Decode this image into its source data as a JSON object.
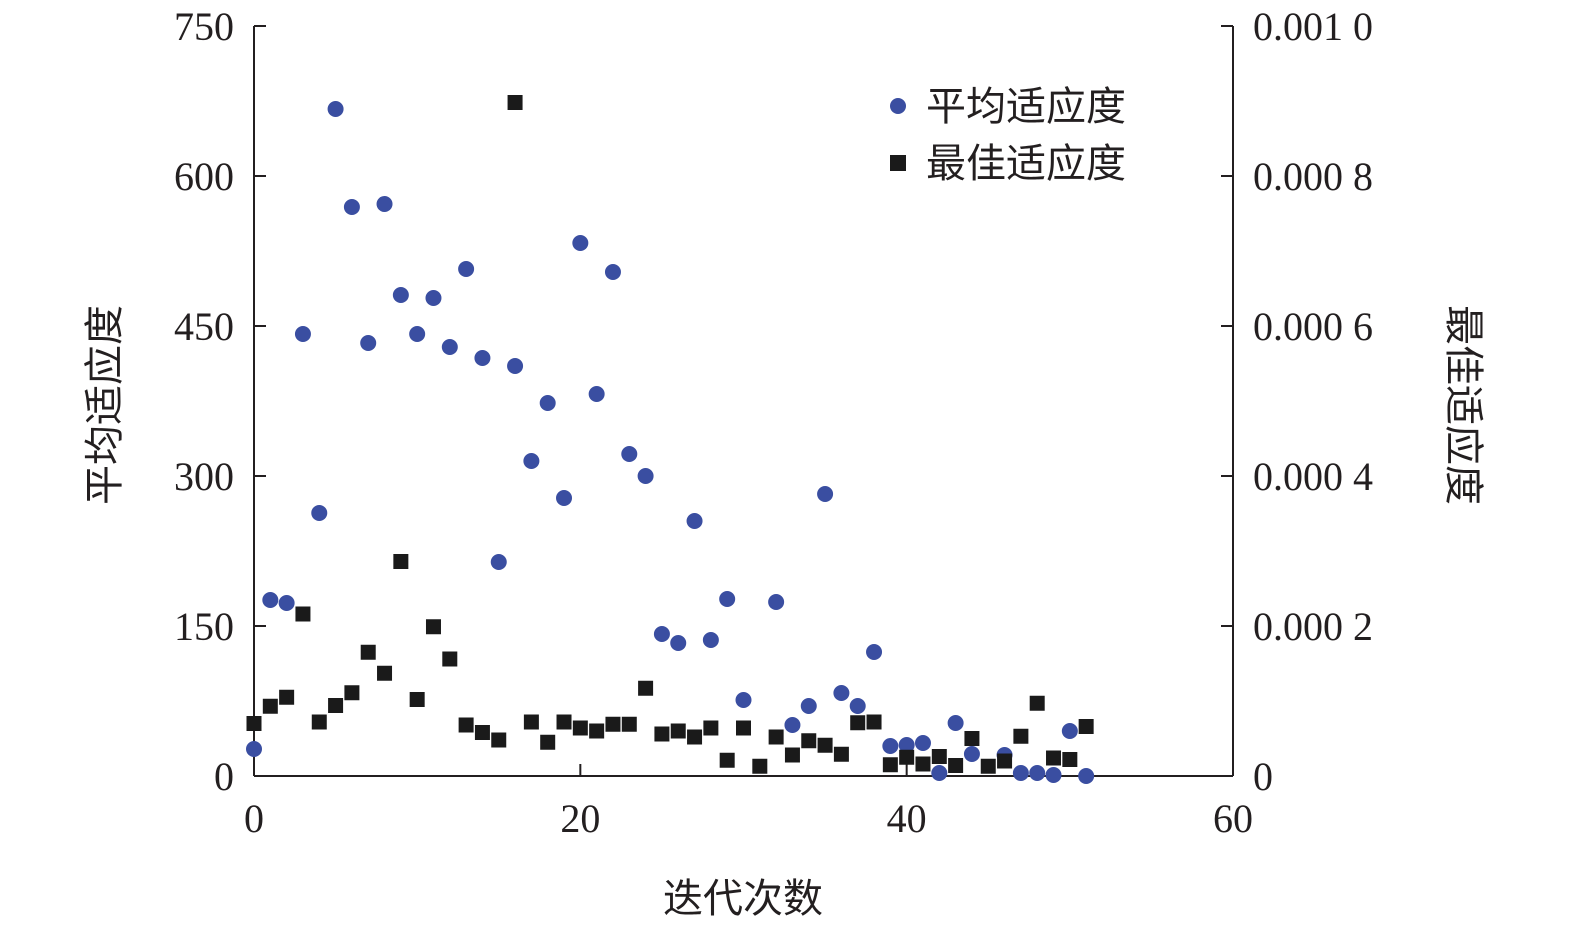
{
  "chart_data": {
    "type": "scatter",
    "title": "",
    "xlabel": "迭代次数",
    "ylabel_left": "平均适应度",
    "ylabel_right": "最佳适应度",
    "xlim": [
      0,
      60
    ],
    "ylim_left": [
      0,
      750
    ],
    "ylim_right": [
      0,
      0.001
    ],
    "x_ticks": [
      0,
      20,
      40,
      60
    ],
    "x_tick_labels": [
      "0",
      "20",
      "40",
      "60"
    ],
    "y_left_ticks": [
      0,
      150,
      300,
      450,
      600,
      750
    ],
    "y_left_tick_labels": [
      "0",
      "150",
      "300",
      "450",
      "600",
      "750"
    ],
    "y_right_ticks": [
      0,
      0.0002,
      0.0004,
      0.0006,
      0.0008,
      0.001
    ],
    "y_right_tick_labels": [
      "0",
      "0.000 2",
      "0.000 4",
      "0.000 6",
      "0.000 8",
      "0.001 0"
    ],
    "grid": false,
    "legend_position": "top-right",
    "colors": {
      "avg": "#3a4ea1",
      "best": "#1a1a1a",
      "axis": "#231f20"
    },
    "series": [
      {
        "name": "平均适应度",
        "axis": "left",
        "marker": "circle",
        "x": [
          0,
          1,
          2,
          3,
          4,
          5,
          6,
          7,
          8,
          9,
          10,
          11,
          12,
          13,
          14,
          15,
          16,
          17,
          18,
          19,
          20,
          21,
          22,
          23,
          24,
          25,
          26,
          27,
          28,
          29,
          30,
          32,
          33,
          34,
          35,
          36,
          37,
          38,
          39,
          40,
          41,
          42,
          43,
          44,
          46,
          47,
          48,
          49,
          50,
          51
        ],
        "y": [
          27,
          176,
          173,
          442,
          263,
          667,
          569,
          433,
          572,
          481,
          442,
          478,
          429,
          507,
          418,
          214,
          410,
          315,
          373,
          278,
          533,
          382,
          504,
          322,
          300,
          142,
          133,
          255,
          136,
          177,
          76,
          174,
          51,
          70,
          282,
          83,
          70,
          124,
          30,
          31,
          33,
          3,
          53,
          22,
          21,
          3,
          3,
          1,
          45,
          0
        ]
      },
      {
        "name": "最佳适应度",
        "axis": "right",
        "marker": "square",
        "x": [
          0,
          1,
          2,
          3,
          4,
          5,
          6,
          7,
          8,
          9,
          10,
          11,
          12,
          13,
          14,
          15,
          16,
          17,
          18,
          19,
          20,
          21,
          22,
          23,
          24,
          25,
          26,
          27,
          28,
          29,
          30,
          31,
          32,
          33,
          34,
          35,
          36,
          37,
          38,
          39,
          40,
          41,
          42,
          43,
          44,
          45,
          46,
          47,
          48,
          49,
          50,
          51
        ],
        "y": [
          7e-05,
          9.3e-05,
          0.000105,
          0.000216,
          7.2e-05,
          9.4e-05,
          0.000111,
          0.000165,
          0.000137,
          0.000286,
          0.000102,
          0.000199,
          0.000156,
          6.8e-05,
          5.8e-05,
          4.8e-05,
          0.000898,
          7.2e-05,
          4.5e-05,
          7.2e-05,
          6.4e-05,
          6e-05,
          6.9e-05,
          6.9e-05,
          0.000117,
          5.6e-05,
          6e-05,
          5.2e-05,
          6.4e-05,
          2.1e-05,
          6.4e-05,
          1.3e-05,
          5.2e-05,
          2.8e-05,
          4.7e-05,
          4.1e-05,
          2.9e-05,
          7.1e-05,
          7.2e-05,
          1.5e-05,
          2.5e-05,
          1.6e-05,
          2.6e-05,
          1.4e-05,
          5e-05,
          1.3e-05,
          2e-05,
          5.3e-05,
          9.7e-05,
          2.4e-05,
          2.2e-05,
          6.6e-05
        ]
      }
    ]
  }
}
